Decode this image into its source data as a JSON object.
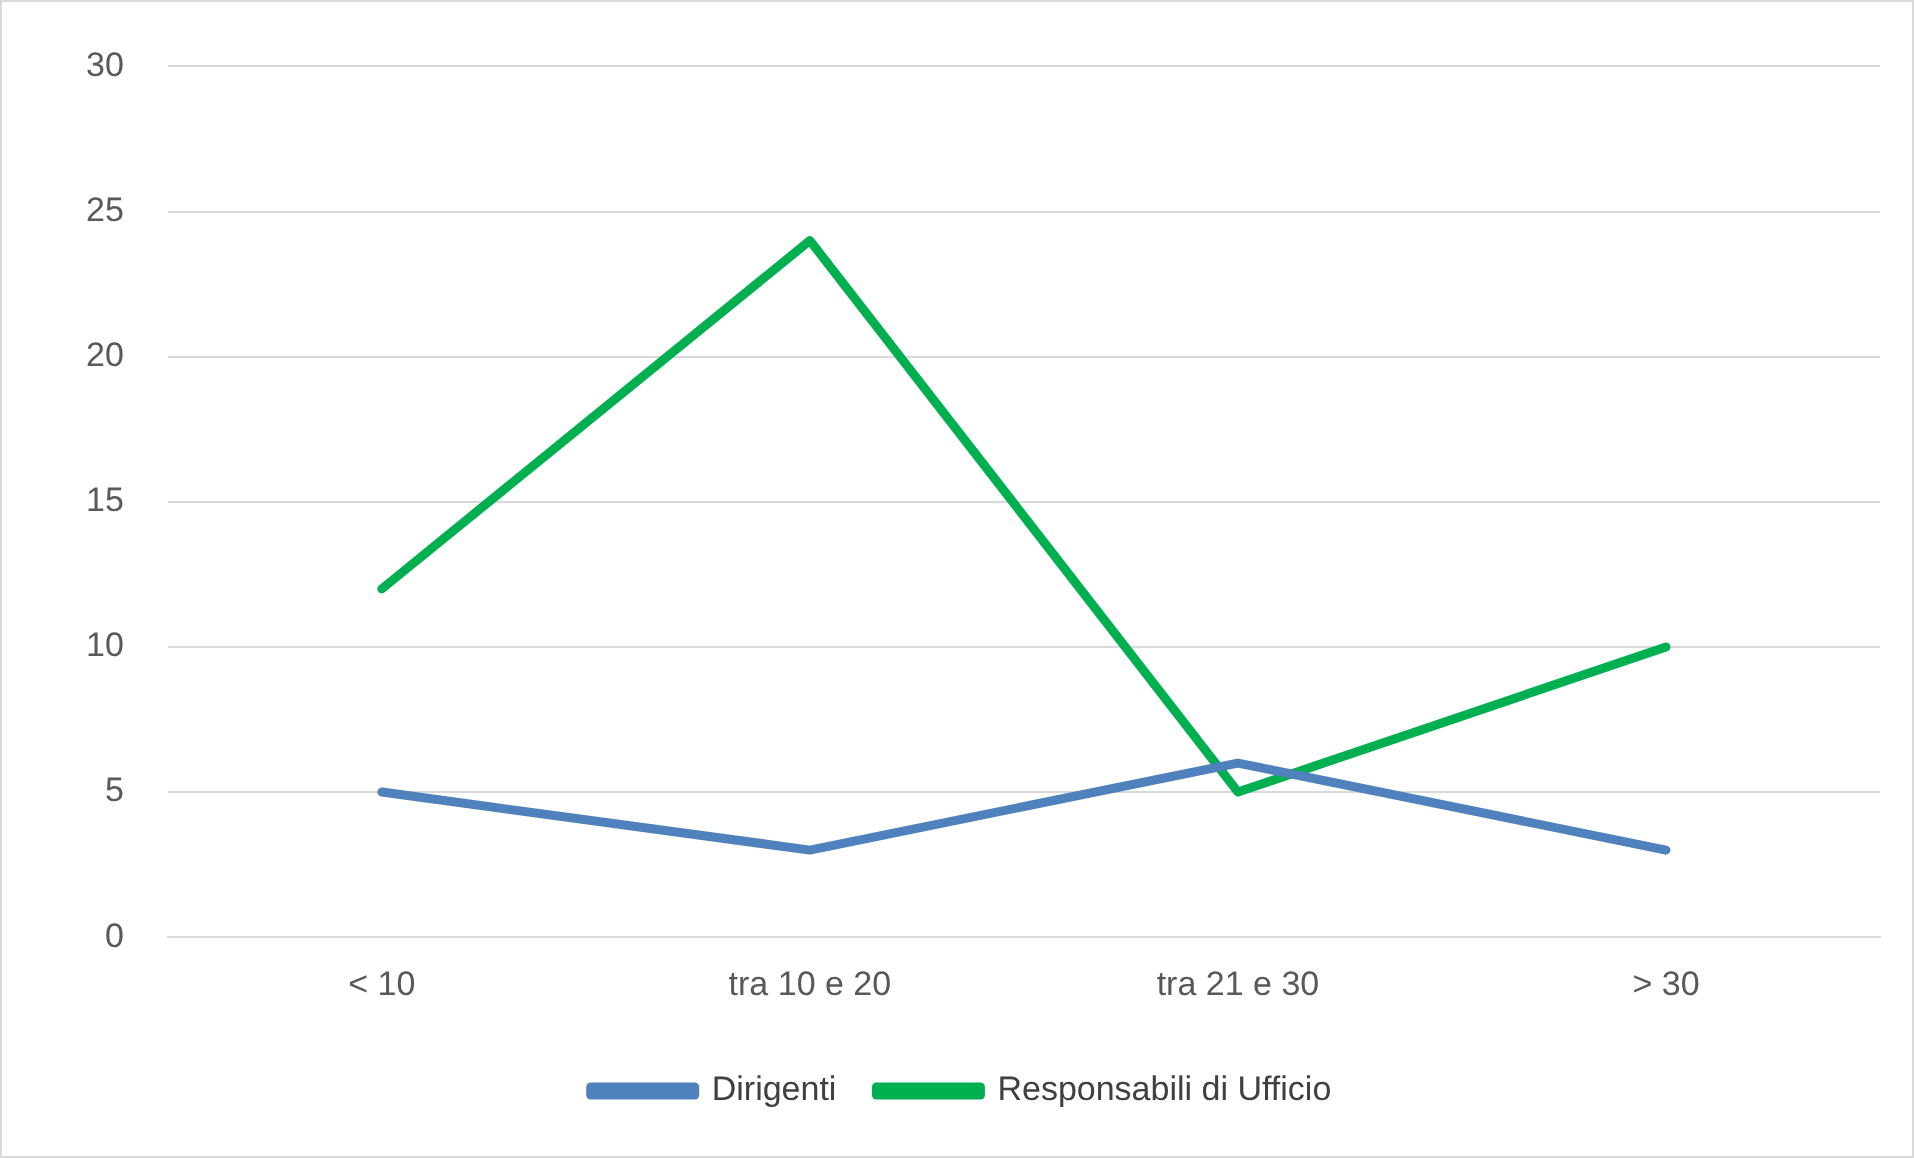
{
  "chart_data": {
    "type": "line",
    "categories": [
      "< 10",
      "tra 10 e 20",
      "tra 21 e 30",
      "> 30"
    ],
    "series": [
      {
        "name": "Dirigenti",
        "color": "#4f81bd",
        "values": [
          5,
          3,
          6,
          3
        ]
      },
      {
        "name": "Responsabili di Ufficio",
        "color": "#00b050",
        "values": [
          12,
          24,
          5,
          10
        ]
      }
    ],
    "ylim": [
      0,
      30
    ],
    "yticks": [
      0,
      5,
      10,
      15,
      20,
      25,
      30
    ],
    "grid": "y",
    "legend": "bottom",
    "marker": "none",
    "line_style": "solid"
  }
}
